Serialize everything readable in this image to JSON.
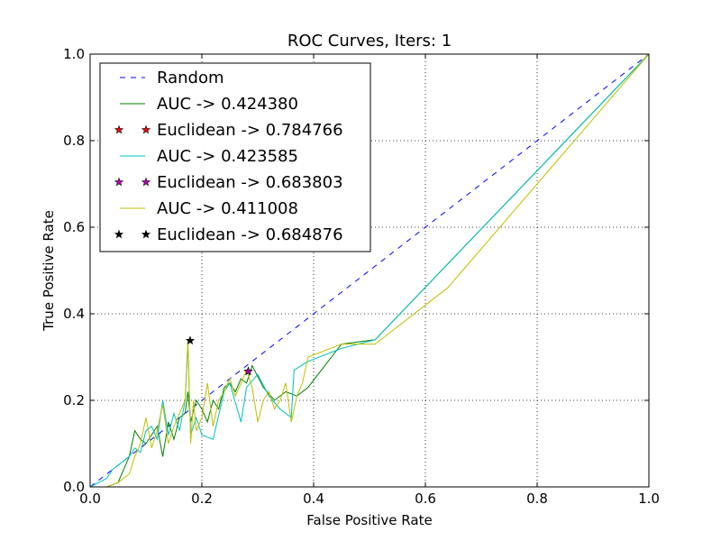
{
  "chart_data": {
    "type": "line",
    "title": "ROC Curves, Iters: 1",
    "xlabel": "False Positive Rate",
    "ylabel": "True Positive Rate",
    "xlim": [
      0.0,
      1.0
    ],
    "ylim": [
      0.0,
      1.0
    ],
    "xticks": [
      "0.0",
      "0.2",
      "0.4",
      "0.6",
      "0.8",
      "1.0"
    ],
    "yticks": [
      "0.0",
      "0.2",
      "0.4",
      "0.6",
      "0.8",
      "1.0"
    ],
    "grid": true,
    "legend_position": "top-left",
    "series": [
      {
        "name": "Random",
        "kind": "line",
        "style": "dashed",
        "color": "#0000ff",
        "x": [
          0.0,
          1.0
        ],
        "y": [
          0.0,
          1.0
        ]
      },
      {
        "name": "AUC -> 0.424380",
        "kind": "line",
        "style": "solid",
        "color": "#008000",
        "x": [
          0.0,
          0.03,
          0.05,
          0.07,
          0.08,
          0.09,
          0.1,
          0.11,
          0.12,
          0.13,
          0.14,
          0.15,
          0.16,
          0.17,
          0.175,
          0.18,
          0.19,
          0.2,
          0.21,
          0.22,
          0.23,
          0.24,
          0.25,
          0.26,
          0.27,
          0.28,
          0.29,
          0.31,
          0.33,
          0.35,
          0.37,
          0.39,
          0.45,
          0.51,
          1.0
        ],
        "y": [
          0.0,
          0.0,
          0.01,
          0.07,
          0.13,
          0.11,
          0.1,
          0.12,
          0.14,
          0.07,
          0.15,
          0.11,
          0.16,
          0.17,
          0.22,
          0.15,
          0.2,
          0.18,
          0.15,
          0.2,
          0.18,
          0.23,
          0.24,
          0.22,
          0.25,
          0.24,
          0.28,
          0.23,
          0.2,
          0.22,
          0.21,
          0.23,
          0.33,
          0.34,
          1.0
        ]
      },
      {
        "name": "Euclidean -> 0.784766",
        "kind": "marker",
        "color": "#ff0000",
        "x": [
          0.283
        ],
        "y": [
          0.267
        ]
      },
      {
        "name": "AUC -> 0.423585",
        "kind": "line",
        "style": "solid",
        "color": "#00bfbf",
        "x": [
          0.0,
          0.03,
          0.04,
          0.05,
          0.06,
          0.07,
          0.08,
          0.09,
          0.1,
          0.11,
          0.12,
          0.13,
          0.14,
          0.15,
          0.16,
          0.17,
          0.175,
          0.18,
          0.19,
          0.2,
          0.22,
          0.24,
          0.25,
          0.27,
          0.28,
          0.3,
          0.32,
          0.34,
          0.36,
          0.365,
          0.39,
          0.45,
          0.51,
          1.0
        ],
        "y": [
          0.0,
          0.02,
          0.04,
          0.05,
          0.06,
          0.07,
          0.09,
          0.08,
          0.13,
          0.14,
          0.11,
          0.2,
          0.12,
          0.17,
          0.13,
          0.2,
          0.33,
          0.12,
          0.16,
          0.12,
          0.11,
          0.22,
          0.24,
          0.15,
          0.23,
          0.26,
          0.21,
          0.18,
          0.16,
          0.27,
          0.29,
          0.32,
          0.34,
          1.0
        ]
      },
      {
        "name": "Euclidean -> 0.683803",
        "kind": "marker",
        "color": "#bf00bf",
        "x": [
          0.283
        ],
        "y": [
          0.267
        ]
      },
      {
        "name": "AUC -> 0.411008",
        "kind": "line",
        "style": "solid",
        "color": "#bfbf00",
        "x": [
          0.0,
          0.03,
          0.05,
          0.07,
          0.08,
          0.09,
          0.1,
          0.11,
          0.12,
          0.13,
          0.14,
          0.15,
          0.16,
          0.17,
          0.175,
          0.18,
          0.185,
          0.19,
          0.2,
          0.21,
          0.22,
          0.23,
          0.24,
          0.25,
          0.26,
          0.27,
          0.28,
          0.29,
          0.3,
          0.31,
          0.32,
          0.33,
          0.34,
          0.35,
          0.36,
          0.37,
          0.38,
          0.39,
          0.45,
          0.51,
          0.64,
          1.0
        ],
        "y": [
          0.0,
          0.0,
          0.01,
          0.03,
          0.07,
          0.1,
          0.16,
          0.09,
          0.13,
          0.19,
          0.1,
          0.14,
          0.17,
          0.2,
          0.34,
          0.1,
          0.2,
          0.13,
          0.16,
          0.24,
          0.14,
          0.2,
          0.22,
          0.25,
          0.21,
          0.24,
          0.27,
          0.23,
          0.15,
          0.2,
          0.22,
          0.18,
          0.2,
          0.24,
          0.15,
          0.21,
          0.24,
          0.3,
          0.33,
          0.33,
          0.46,
          1.0
        ]
      },
      {
        "name": "Euclidean -> 0.684876",
        "kind": "marker",
        "color": "#000000",
        "x": [
          0.179
        ],
        "y": [
          0.338
        ]
      }
    ]
  }
}
